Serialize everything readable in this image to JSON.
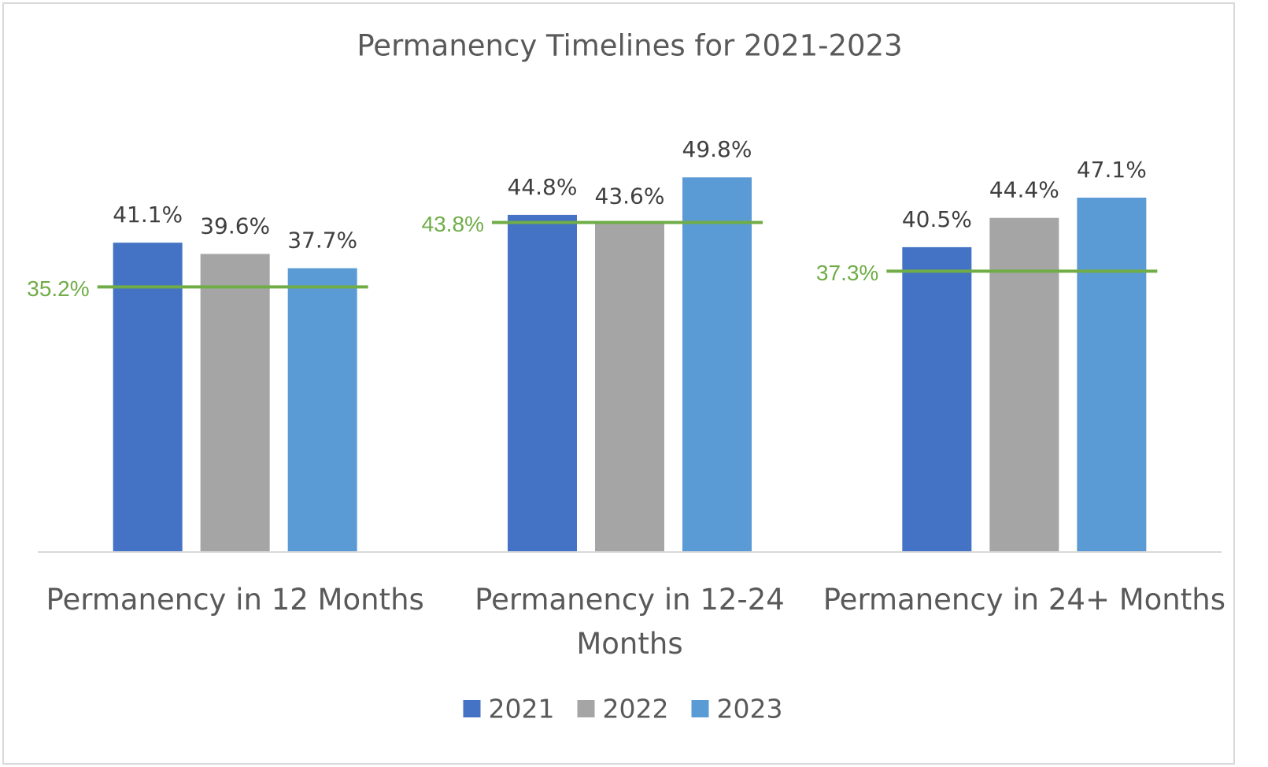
{
  "chart_data": {
    "type": "bar",
    "title": "Permanency Timelines for 2021-2023",
    "categories": [
      "Permanency in 12 Months",
      "Permanency in 12-24 Months",
      "Permanency in 24+ Months"
    ],
    "series": [
      {
        "name": "2021",
        "color": "#4472c4",
        "values": [
          41.1,
          44.8,
          40.5
        ],
        "value_labels": [
          "41.1%",
          "44.8%",
          "40.5%"
        ]
      },
      {
        "name": "2022",
        "color": "#a5a5a5",
        "values": [
          39.6,
          43.6,
          44.4
        ],
        "value_labels": [
          "39.6%",
          "43.6%",
          "44.4%"
        ]
      },
      {
        "name": "2023",
        "color": "#5b9bd5",
        "values": [
          37.7,
          49.8,
          47.1
        ],
        "value_labels": [
          "37.7%",
          "49.8%",
          "47.1%"
        ]
      }
    ],
    "targets": {
      "color": "#70ad47",
      "values": [
        35.2,
        43.8,
        37.3
      ],
      "value_labels": [
        "35.2%",
        "43.8%",
        "37.3%"
      ]
    },
    "ylim": [
      0,
      60
    ],
    "legend": "bottom"
  }
}
